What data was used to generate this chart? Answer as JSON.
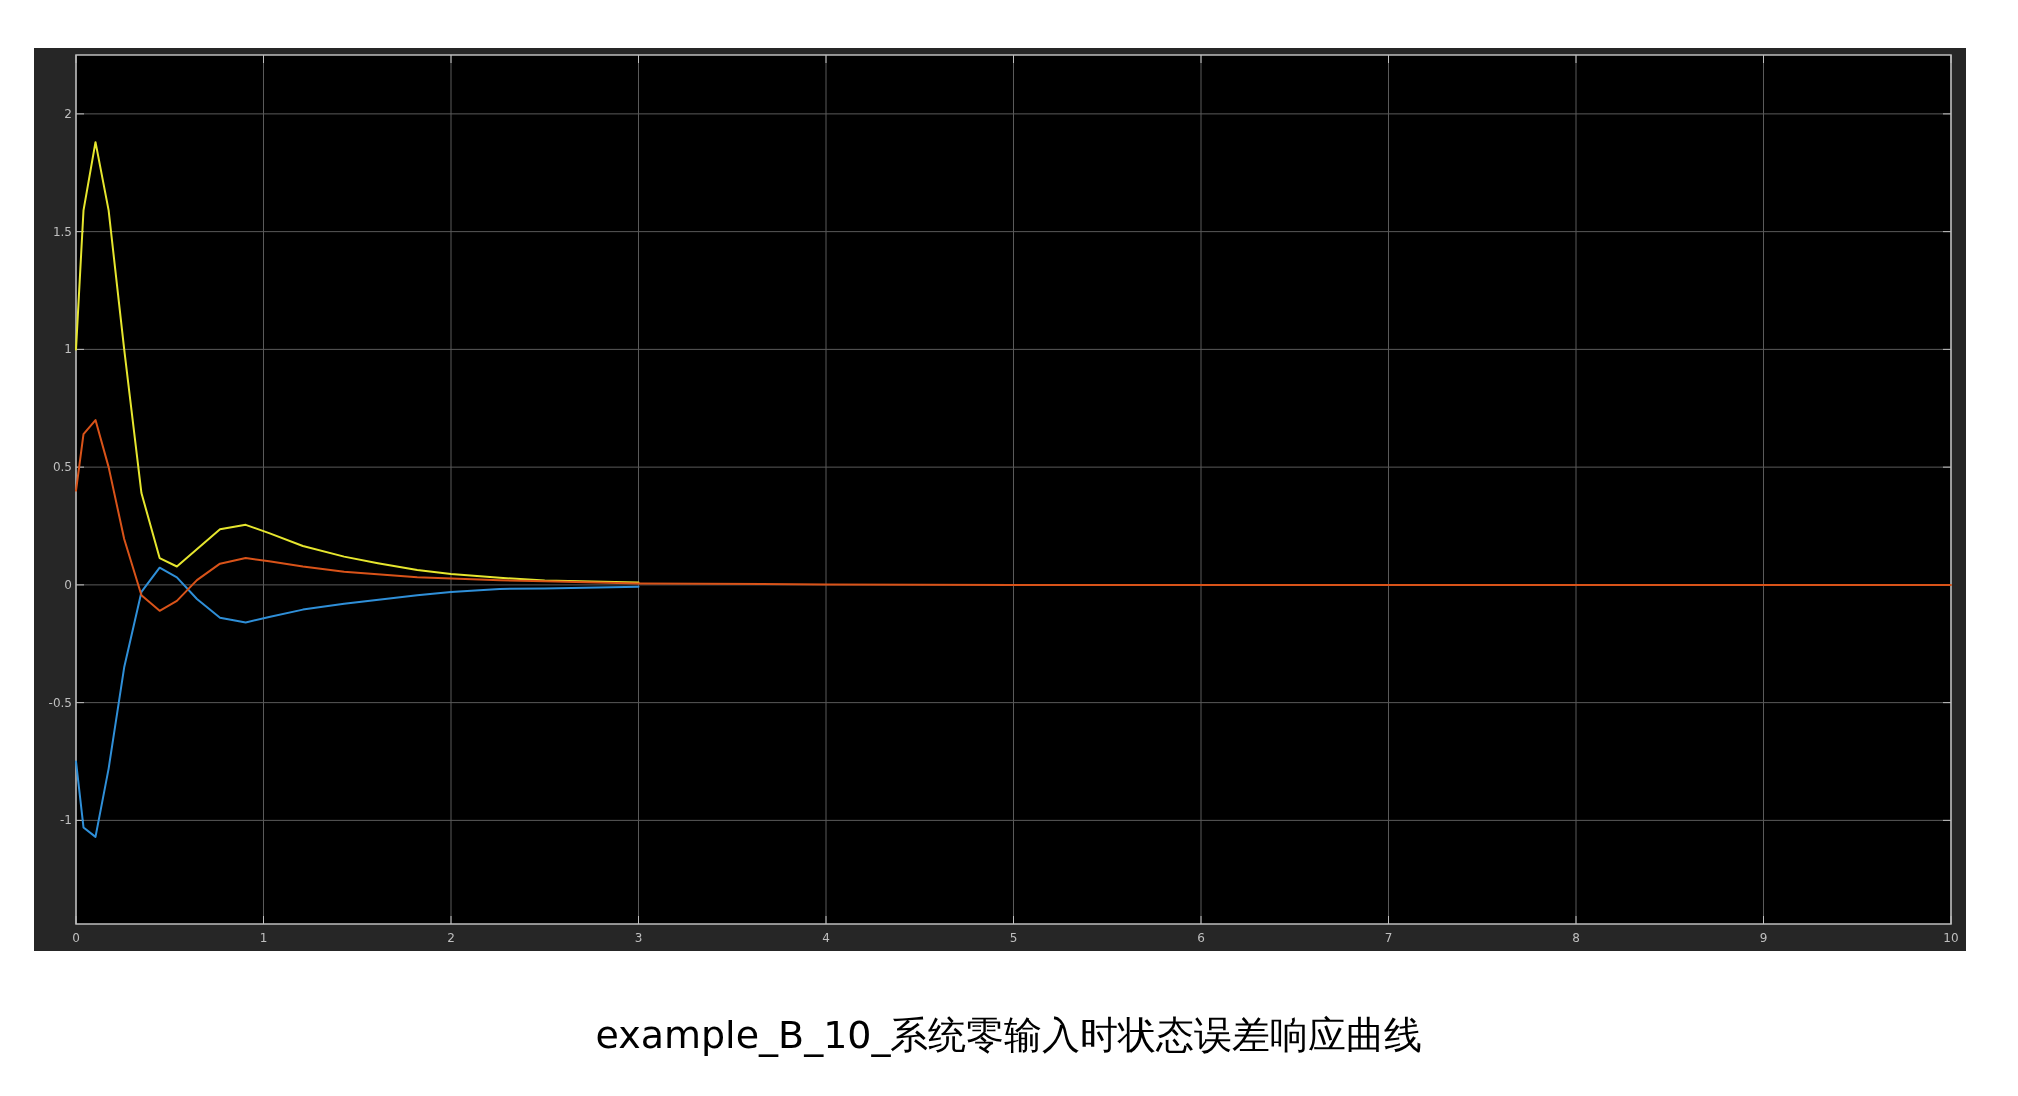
{
  "chart_data": {
    "type": "line",
    "title": "example_B_10_系统零输入时状态误差响应曲线",
    "xlim": [
      0,
      10
    ],
    "ylim": [
      -1.44,
      2.25
    ],
    "xticks": [
      0,
      1,
      2,
      3,
      4,
      5,
      6,
      7,
      8,
      9,
      10
    ],
    "yticks": [
      -1,
      -0.5,
      0,
      0.5,
      1,
      1.5,
      2
    ],
    "grid": true,
    "series": [
      {
        "color": "#e6e62e",
        "x": [
          0,
          0.04,
          0.104,
          0.174,
          0.257,
          0.349,
          0.446,
          0.538,
          0.768,
          0.905,
          1.03,
          1.21,
          1.43,
          1.61,
          1.82,
          2,
          2.26,
          2.5,
          3
        ],
        "values": [
          1.0,
          1.59,
          1.88,
          1.59,
          1.0,
          0.39,
          0.114,
          0.078,
          0.236,
          0.255,
          0.22,
          0.165,
          0.12,
          0.092,
          0.063,
          0.046,
          0.03,
          0.019,
          0.01
        ]
      },
      {
        "color": "#2f8fd8",
        "x": [
          0,
          0.04,
          0.104,
          0.174,
          0.257,
          0.349,
          0.446,
          0.538,
          0.645,
          0.768,
          0.905,
          1.03,
          1.21,
          1.43,
          1.82,
          2,
          2.26,
          2.5,
          3
        ],
        "values": [
          -0.75,
          -1.03,
          -1.07,
          -0.78,
          -0.35,
          -0.03,
          0.073,
          0.032,
          -0.06,
          -0.14,
          -0.16,
          -0.136,
          -0.105,
          -0.08,
          -0.044,
          -0.03,
          -0.017,
          -0.015,
          -0.008
        ]
      },
      {
        "color": "#d95319",
        "x": [
          0,
          0.04,
          0.104,
          0.174,
          0.257,
          0.349,
          0.446,
          0.538,
          0.645,
          0.768,
          0.905,
          1.03,
          1.21,
          1.43,
          1.82,
          2.26,
          2.5,
          3,
          4,
          5,
          6,
          10
        ],
        "values": [
          0.4,
          0.64,
          0.7,
          0.5,
          0.195,
          -0.044,
          -0.11,
          -0.068,
          0.02,
          0.09,
          0.114,
          0.1,
          0.078,
          0.056,
          0.032,
          0.02,
          0.015,
          0.006,
          0.002,
          0,
          0,
          0
        ]
      }
    ]
  }
}
